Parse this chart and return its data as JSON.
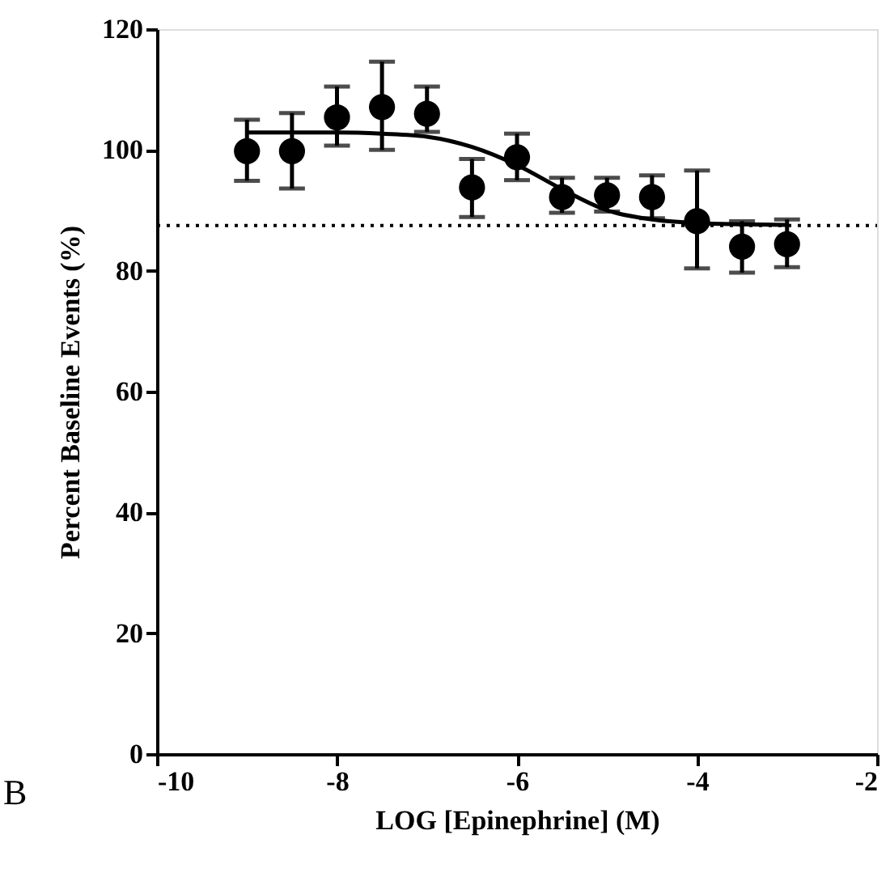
{
  "chart_data": {
    "type": "scatter",
    "xlabel": "LOG [Epinephrine] (M)",
    "ylabel": "Percent Baseline Events (%)",
    "annotations": [
      "B"
    ],
    "xlim": [
      -10,
      -2
    ],
    "xticks": [
      -10,
      -8,
      -6,
      -4,
      -2
    ],
    "ylim": [
      0,
      120
    ],
    "yticks": [
      0,
      20,
      40,
      60,
      80,
      100,
      120
    ],
    "grid": false,
    "series": [
      {
        "marker": "circle",
        "color": "#000000",
        "x": [
          -9,
          -8.5,
          -8,
          -7.5,
          -7,
          -6.5,
          -6,
          -5.5,
          -5,
          -4.5,
          -4,
          -3.5,
          -3
        ],
        "values": [
          99.8,
          99.8,
          105.4,
          107.1,
          106,
          93.8,
          98.8,
          92.2,
          92.5,
          92.2,
          88.2,
          84.0,
          84.4
        ],
        "errors": [
          [
            94.9,
            105.0
          ],
          [
            93.6,
            106.1
          ],
          [
            100.7,
            110.5
          ],
          [
            100.0,
            114.6
          ],
          [
            103.0,
            110.5
          ],
          [
            88.9,
            98.5
          ],
          [
            95.0,
            102.7
          ],
          [
            89.6,
            95.4
          ],
          [
            89.8,
            95.4
          ],
          [
            88.7,
            95.8
          ],
          [
            80.4,
            96.6
          ],
          [
            79.7,
            88.2
          ],
          [
            80.6,
            88.5
          ]
        ]
      },
      {
        "type": "line",
        "color": "#000000",
        "line_style": "solid",
        "x": [
          -9,
          -8,
          -7.5,
          -7,
          -6.5,
          -6,
          -5.5,
          -5,
          -4.5,
          -4,
          -3.5,
          -3
        ],
        "values": [
          102.9,
          102.9,
          102.7,
          102.2,
          100.5,
          97.5,
          93.5,
          90.0,
          88.5,
          87.9,
          87.7,
          87.6
        ]
      }
    ],
    "ref_lines": [
      {
        "axis": "y",
        "value": 87.5,
        "line_style": "dotted",
        "color": "#000000"
      }
    ]
  }
}
